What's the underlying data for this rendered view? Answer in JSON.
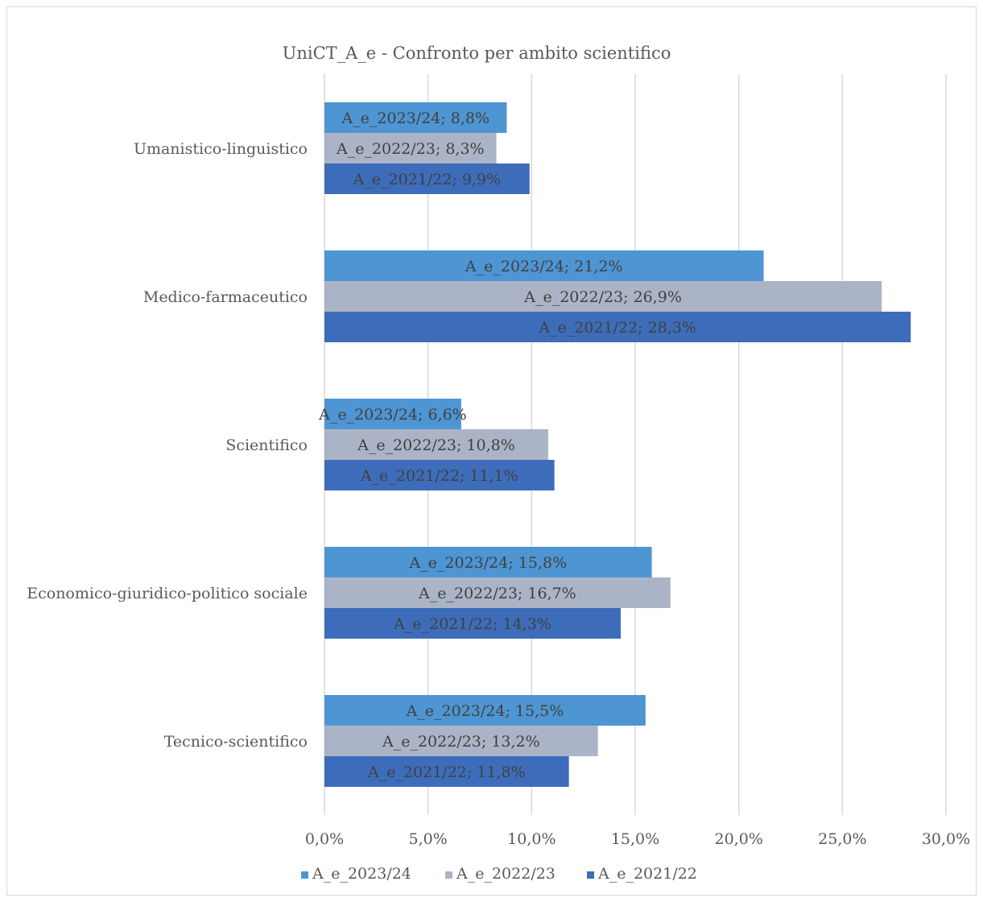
{
  "chart_data": {
    "type": "bar",
    "orientation": "horizontal",
    "title": "UniCT_A_e -  Confronto per ambito scientifico",
    "categories": [
      "Umanistico-linguistico",
      "Medico-farmaceutico",
      "Scientifico",
      "Economico-giuridico-politico sociale",
      "Tecnico-scientifico"
    ],
    "series": [
      {
        "name": "A_e_2023/24",
        "color": "#4e95d3",
        "values": [
          8.8,
          21.2,
          6.6,
          15.8,
          15.5
        ]
      },
      {
        "name": "A_e_2022/23",
        "color": "#abb4c6",
        "values": [
          8.3,
          26.9,
          10.8,
          16.7,
          13.2
        ]
      },
      {
        "name": "A_e_2021/22",
        "color": "#3d6dba",
        "values": [
          9.9,
          28.3,
          11.1,
          14.3,
          11.8
        ]
      }
    ],
    "data_labels": [
      [
        "A_e_2023/24; 8,8%",
        "A_e_2023/24; 21,2%",
        "A_e_2023/24; 6,6%",
        "A_e_2023/24; 15,8%",
        "A_e_2023/24; 15,5%"
      ],
      [
        "A_e_2022/23; 8,3%",
        "A_e_2022/23; 26,9%",
        "A_e_2022/23; 10,8%",
        "A_e_2022/23; 16,7%",
        "A_e_2022/23; 13,2%"
      ],
      [
        "A_e_2021/22; 9,9%",
        "A_e_2021/22; 28,3%",
        "A_e_2021/22; 11,1%",
        "A_e_2021/22; 14,3%",
        "A_e_2021/22; 11,8%"
      ]
    ],
    "x_ticks": [
      "0,0%",
      "5,0%",
      "10,0%",
      "15,0%",
      "20,0%",
      "25,0%",
      "30,0%"
    ],
    "xlim": [
      0,
      30
    ],
    "grid": true,
    "legend": "bottom"
  }
}
